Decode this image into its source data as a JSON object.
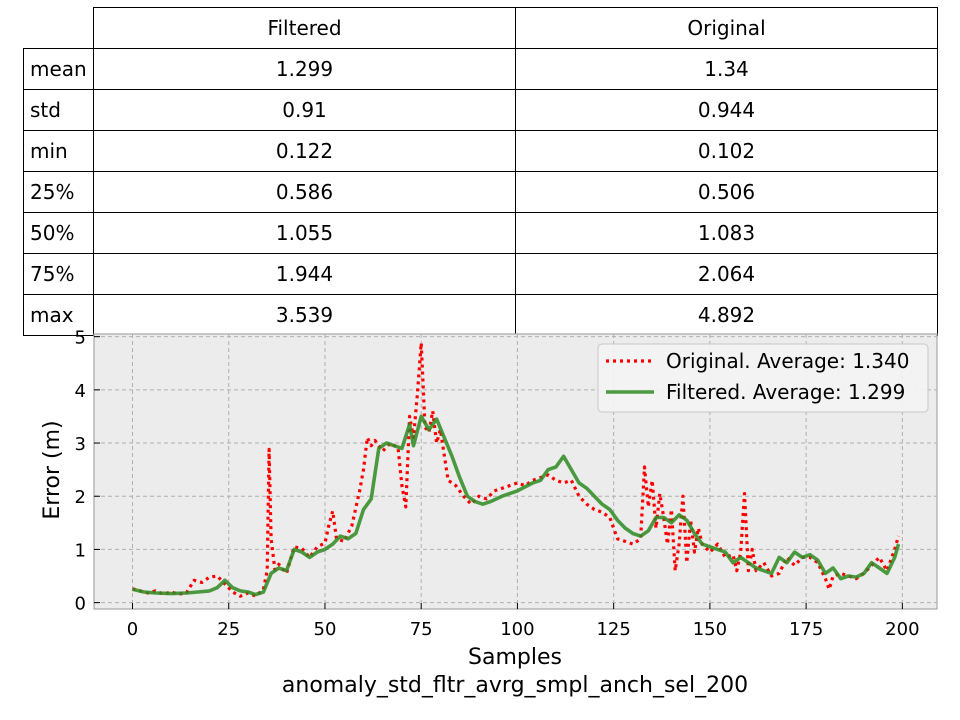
{
  "table": {
    "columns": [
      "Filtered",
      "Original"
    ],
    "rows": [
      {
        "label": "mean",
        "filtered": "1.299",
        "original": "1.34"
      },
      {
        "label": "std",
        "filtered": "0.91",
        "original": "0.944"
      },
      {
        "label": "min",
        "filtered": "0.122",
        "original": "0.102"
      },
      {
        "label": "25%",
        "filtered": "0.586",
        "original": "0.506"
      },
      {
        "label": "50%",
        "filtered": "1.055",
        "original": "1.083"
      },
      {
        "label": "75%",
        "filtered": "1.944",
        "original": "2.064"
      },
      {
        "label": "max",
        "filtered": "3.539",
        "original": "4.892"
      }
    ]
  },
  "chart_data": {
    "type": "line",
    "xlabel": "Samples",
    "title": "anomaly_std_fltr_avrg_smpl_anch_sel_200",
    "ylabel": "Error (m)",
    "xlim": [
      -10,
      209
    ],
    "ylim": [
      -0.12,
      5.05
    ],
    "xticks": [
      0,
      25,
      50,
      75,
      100,
      125,
      150,
      175,
      200
    ],
    "yticks": [
      0,
      1,
      2,
      3,
      4,
      5
    ],
    "grid": true,
    "legend_position": "top-right",
    "series": [
      {
        "name": "Original. Average: 1.340",
        "color": "#ff0000",
        "style": "dotted",
        "points": [
          [
            0,
            0.26
          ],
          [
            2,
            0.22
          ],
          [
            4,
            0.18
          ],
          [
            6,
            0.22
          ],
          [
            8,
            0.16
          ],
          [
            10,
            0.2
          ],
          [
            12,
            0.16
          ],
          [
            14,
            0.18
          ],
          [
            16,
            0.42
          ],
          [
            18,
            0.38
          ],
          [
            20,
            0.48
          ],
          [
            22,
            0.5
          ],
          [
            24,
            0.35
          ],
          [
            26,
            0.2
          ],
          [
            28,
            0.12
          ],
          [
            30,
            0.18
          ],
          [
            32,
            0.12
          ],
          [
            34,
            0.25
          ],
          [
            35,
            0.6
          ],
          [
            35.5,
            2.88
          ],
          [
            36,
            1.2
          ],
          [
            37,
            0.62
          ],
          [
            38,
            0.72
          ],
          [
            40,
            0.55
          ],
          [
            42,
            1.05
          ],
          [
            44,
            1.02
          ],
          [
            46,
            0.85
          ],
          [
            48,
            1.05
          ],
          [
            50,
            1.12
          ],
          [
            51,
            1.45
          ],
          [
            52,
            1.72
          ],
          [
            53,
            1.2
          ],
          [
            55,
            1.15
          ],
          [
            57,
            1.45
          ],
          [
            59,
            2.1
          ],
          [
            60,
            2.5
          ],
          [
            61,
            3.1
          ],
          [
            62,
            2.95
          ],
          [
            63,
            3.05
          ],
          [
            65,
            2.85
          ],
          [
            67,
            3.0
          ],
          [
            69,
            2.9
          ],
          [
            70,
            2.2
          ],
          [
            71,
            1.8
          ],
          [
            72,
            3.5
          ],
          [
            73,
            3.1
          ],
          [
            74,
            3.9
          ],
          [
            75,
            4.88
          ],
          [
            76,
            3.3
          ],
          [
            77,
            3.2
          ],
          [
            78,
            3.6
          ],
          [
            79,
            3.0
          ],
          [
            80,
            3.25
          ],
          [
            82,
            2.3
          ],
          [
            84,
            2.2
          ],
          [
            86,
            2.0
          ],
          [
            88,
            1.85
          ],
          [
            90,
            2.0
          ],
          [
            92,
            1.95
          ],
          [
            94,
            2.1
          ],
          [
            96,
            2.15
          ],
          [
            98,
            2.2
          ],
          [
            100,
            2.25
          ],
          [
            102,
            2.2
          ],
          [
            104,
            2.3
          ],
          [
            106,
            2.35
          ],
          [
            108,
            2.4
          ],
          [
            110,
            2.3
          ],
          [
            112,
            2.25
          ],
          [
            114,
            2.3
          ],
          [
            116,
            2.0
          ],
          [
            118,
            1.85
          ],
          [
            120,
            1.75
          ],
          [
            122,
            1.7
          ],
          [
            124,
            1.6
          ],
          [
            126,
            1.2
          ],
          [
            128,
            1.15
          ],
          [
            130,
            1.1
          ],
          [
            132,
            1.2
          ],
          [
            133,
            2.55
          ],
          [
            134,
            1.8
          ],
          [
            135,
            2.3
          ],
          [
            136,
            1.4
          ],
          [
            137,
            2.05
          ],
          [
            138,
            1.6
          ],
          [
            139,
            1.1
          ],
          [
            140,
            1.75
          ],
          [
            141,
            0.6
          ],
          [
            142,
            1.1
          ],
          [
            143,
            2.0
          ],
          [
            144,
            0.75
          ],
          [
            145,
            1.55
          ],
          [
            146,
            0.95
          ],
          [
            147,
            1.4
          ],
          [
            148,
            1.1
          ],
          [
            150,
            0.95
          ],
          [
            152,
            1.1
          ],
          [
            154,
            0.85
          ],
          [
            156,
            0.9
          ],
          [
            157,
            0.6
          ],
          [
            158,
            0.95
          ],
          [
            159,
            2.05
          ],
          [
            160,
            0.6
          ],
          [
            161,
            1.0
          ],
          [
            162,
            0.6
          ],
          [
            164,
            0.75
          ],
          [
            166,
            0.5
          ],
          [
            168,
            0.55
          ],
          [
            170,
            0.85
          ],
          [
            172,
            0.7
          ],
          [
            174,
            0.85
          ],
          [
            176,
            0.85
          ],
          [
            178,
            0.75
          ],
          [
            180,
            0.45
          ],
          [
            181,
            0.25
          ],
          [
            182,
            0.5
          ],
          [
            184,
            0.55
          ],
          [
            186,
            0.5
          ],
          [
            188,
            0.45
          ],
          [
            190,
            0.55
          ],
          [
            192,
            0.7
          ],
          [
            194,
            0.85
          ],
          [
            196,
            0.6
          ],
          [
            198,
            1.0
          ],
          [
            199,
            1.25
          ]
        ]
      },
      {
        "name": "Filtered. Average: 1.299",
        "color": "#2e8b22",
        "style": "solid",
        "points": [
          [
            0,
            0.25
          ],
          [
            3,
            0.2
          ],
          [
            6,
            0.18
          ],
          [
            10,
            0.17
          ],
          [
            14,
            0.18
          ],
          [
            17,
            0.2
          ],
          [
            20,
            0.22
          ],
          [
            22,
            0.28
          ],
          [
            24,
            0.42
          ],
          [
            26,
            0.28
          ],
          [
            28,
            0.22
          ],
          [
            30,
            0.2
          ],
          [
            32,
            0.15
          ],
          [
            34,
            0.2
          ],
          [
            36,
            0.55
          ],
          [
            38,
            0.65
          ],
          [
            40,
            0.6
          ],
          [
            42,
            1.0
          ],
          [
            44,
            0.95
          ],
          [
            46,
            0.85
          ],
          [
            48,
            0.95
          ],
          [
            50,
            1.0
          ],
          [
            52,
            1.1
          ],
          [
            54,
            1.25
          ],
          [
            56,
            1.2
          ],
          [
            57,
            1.25
          ],
          [
            58,
            1.3
          ],
          [
            60,
            1.75
          ],
          [
            62,
            1.95
          ],
          [
            64,
            2.9
          ],
          [
            66,
            3.0
          ],
          [
            68,
            2.95
          ],
          [
            70,
            2.9
          ],
          [
            72,
            3.35
          ],
          [
            73,
            2.95
          ],
          [
            75,
            3.5
          ],
          [
            77,
            3.25
          ],
          [
            79,
            3.45
          ],
          [
            81,
            3.1
          ],
          [
            83,
            2.75
          ],
          [
            85,
            2.35
          ],
          [
            87,
            2.0
          ],
          [
            89,
            1.9
          ],
          [
            91,
            1.85
          ],
          [
            93,
            1.9
          ],
          [
            96,
            2.0
          ],
          [
            100,
            2.1
          ],
          [
            104,
            2.25
          ],
          [
            106,
            2.3
          ],
          [
            108,
            2.5
          ],
          [
            110,
            2.55
          ],
          [
            112,
            2.75
          ],
          [
            114,
            2.5
          ],
          [
            116,
            2.25
          ],
          [
            118,
            2.15
          ],
          [
            120,
            2.0
          ],
          [
            122,
            1.85
          ],
          [
            124,
            1.75
          ],
          [
            126,
            1.55
          ],
          [
            128,
            1.4
          ],
          [
            130,
            1.3
          ],
          [
            132,
            1.25
          ],
          [
            134,
            1.35
          ],
          [
            136,
            1.6
          ],
          [
            138,
            1.6
          ],
          [
            140,
            1.5
          ],
          [
            142,
            1.65
          ],
          [
            144,
            1.55
          ],
          [
            146,
            1.3
          ],
          [
            148,
            1.1
          ],
          [
            150,
            1.05
          ],
          [
            152,
            1.0
          ],
          [
            154,
            0.95
          ],
          [
            156,
            0.75
          ],
          [
            158,
            0.85
          ],
          [
            160,
            0.75
          ],
          [
            162,
            0.65
          ],
          [
            164,
            0.6
          ],
          [
            166,
            0.55
          ],
          [
            168,
            0.85
          ],
          [
            170,
            0.75
          ],
          [
            172,
            0.95
          ],
          [
            174,
            0.85
          ],
          [
            176,
            0.9
          ],
          [
            178,
            0.8
          ],
          [
            180,
            0.55
          ],
          [
            182,
            0.65
          ],
          [
            184,
            0.45
          ],
          [
            186,
            0.5
          ],
          [
            188,
            0.48
          ],
          [
            190,
            0.55
          ],
          [
            192,
            0.75
          ],
          [
            194,
            0.65
          ],
          [
            196,
            0.55
          ],
          [
            198,
            0.85
          ],
          [
            199,
            1.1
          ]
        ]
      }
    ]
  }
}
